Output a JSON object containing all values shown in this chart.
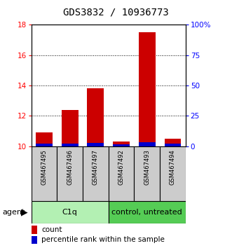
{
  "title": "GDS3832 / 10936773",
  "samples": [
    "GSM467495",
    "GSM467496",
    "GSM467497",
    "GSM467492",
    "GSM467493",
    "GSM467494"
  ],
  "count_values": [
    10.9,
    12.4,
    13.8,
    10.3,
    17.5,
    10.5
  ],
  "percentile_values": [
    2.0,
    2.5,
    3.0,
    1.5,
    3.5,
    2.5
  ],
  "bar_bottom": 10.0,
  "ylim_left": [
    10,
    18
  ],
  "ylim_right": [
    0,
    100
  ],
  "yticks_left": [
    10,
    12,
    14,
    16,
    18
  ],
  "yticks_right": [
    0,
    25,
    50,
    75,
    100
  ],
  "yticklabels_right": [
    "0",
    "25",
    "50",
    "75",
    "100%"
  ],
  "groups": [
    {
      "label": "C1q",
      "color": "#b3f0b3",
      "color_dark": "#55cc55"
    },
    {
      "label": "control, untreated",
      "color": "#55cc55",
      "color_dark": "#33aa33"
    }
  ],
  "count_color": "#cc0000",
  "percentile_color": "#0000cc",
  "bar_width": 0.65,
  "background_color": "#ffffff",
  "title_fontsize": 10,
  "agent_label": "agent",
  "legend_count": "count",
  "legend_percentile": "percentile rank within the sample"
}
